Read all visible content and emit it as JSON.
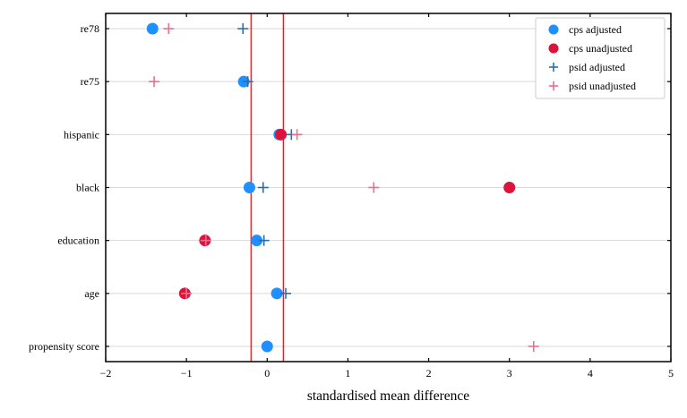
{
  "chart_data": {
    "type": "scatter",
    "xlabel": "standardised mean difference",
    "ylabel": "",
    "xlim": [
      -2,
      5
    ],
    "xticks": [
      -2,
      -1,
      0,
      1,
      2,
      3,
      4,
      5
    ],
    "xtick_labels": [
      "−2",
      "−1",
      "0",
      "1",
      "2",
      "3",
      "4",
      "5"
    ],
    "categories": [
      "re78",
      "re75",
      "hispanic",
      "black",
      "education",
      "age",
      "propensity score"
    ],
    "reference_lines": [
      -0.2,
      0.2
    ],
    "grid": "horizontal",
    "legend_position": "top-right",
    "series": [
      {
        "name": "cps adjusted",
        "marker": "circle",
        "color": "#1e90ff",
        "values": [
          {
            "category": "re78",
            "x": -1.42
          },
          {
            "category": "re75",
            "x": -0.29
          },
          {
            "category": "hispanic",
            "x": 0.15
          },
          {
            "category": "black",
            "x": -0.22
          },
          {
            "category": "education",
            "x": -0.13
          },
          {
            "category": "age",
            "x": 0.12
          },
          {
            "category": "propensity score",
            "x": 0.0
          }
        ]
      },
      {
        "name": "cps unadjusted",
        "marker": "circle",
        "color": "#dc143c",
        "values": [
          {
            "category": "hispanic",
            "x": 0.17
          },
          {
            "category": "black",
            "x": 3.0
          },
          {
            "category": "education",
            "x": -0.77
          },
          {
            "category": "age",
            "x": -1.02
          }
        ]
      },
      {
        "name": "psid adjusted",
        "marker": "plus",
        "color": "#2b6fa8",
        "values": [
          {
            "category": "re78",
            "x": -0.3
          },
          {
            "category": "re75",
            "x": -0.24
          },
          {
            "category": "hispanic",
            "x": 0.3
          },
          {
            "category": "black",
            "x": -0.05
          },
          {
            "category": "education",
            "x": -0.04
          },
          {
            "category": "age",
            "x": 0.23
          }
        ]
      },
      {
        "name": "psid unadjusted",
        "marker": "plus",
        "color": "#e57092",
        "values": [
          {
            "category": "re78",
            "x": -1.22
          },
          {
            "category": "re75",
            "x": -1.4
          },
          {
            "category": "hispanic",
            "x": 0.37
          },
          {
            "category": "black",
            "x": 1.32
          },
          {
            "category": "education",
            "x": -0.76
          },
          {
            "category": "age",
            "x": -1.0
          },
          {
            "category": "propensity score",
            "x": 3.3
          }
        ]
      }
    ]
  }
}
